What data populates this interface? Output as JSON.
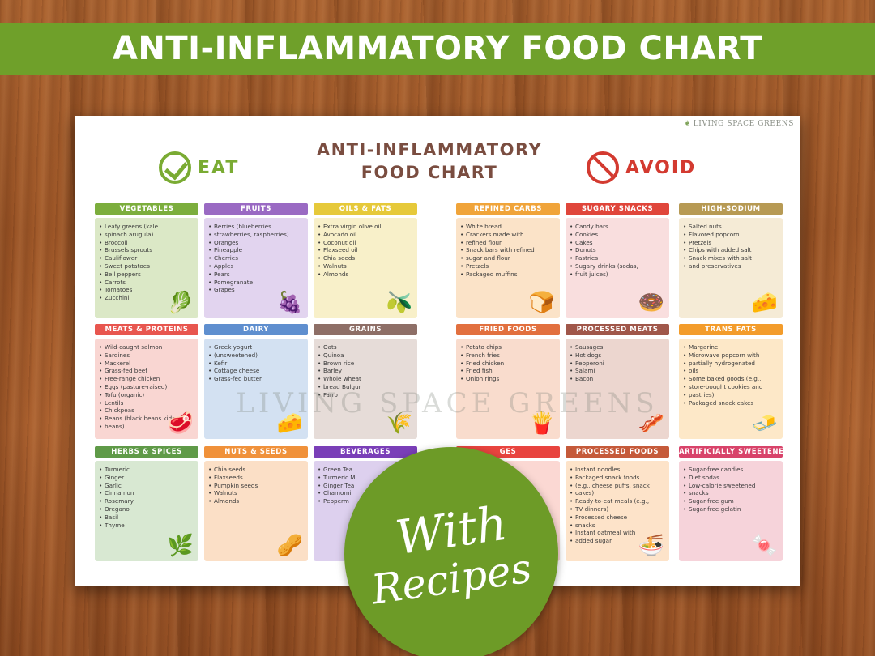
{
  "banner": {
    "title": "ANTI-INFLAMMATORY FOOD CHART"
  },
  "sheet": {
    "brand": "LIVING SPACE GREENS",
    "title_line1": "ANTI-INFLAMMATORY",
    "title_line2": "FOOD CHART",
    "eat_label": "EAT",
    "avoid_label": "AVOID",
    "watermark": "LIVING SPACE GREENS"
  },
  "colors": {
    "banner_green": "#6fa02a",
    "eat_green": "#7aab33",
    "avoid_red": "#d33a30",
    "badge_green": "#6d9b27"
  },
  "categories": [
    {
      "id": "vegetables",
      "label": "VEGETABLES",
      "label_color": "#7cae3d",
      "box_color": "#dbe8c6",
      "icon": "vegetable-basket-icon",
      "glyph": "🥬",
      "items": [
        "Leafy greens (kale",
        "spinach arugula)",
        "Broccoli",
        "Brussels sprouts",
        "Cauliflower",
        "Sweet potatoes",
        "Bell peppers",
        "Carrots",
        "Tomatoes",
        "Zucchini"
      ]
    },
    {
      "id": "fruits",
      "label": "FRUITS",
      "label_color": "#9a6ac3",
      "box_color": "#e2d4ef",
      "icon": "berries-icon",
      "glyph": "🍇",
      "items": [
        "Berries (blueberries",
        "strawberries, raspberries)",
        "Oranges",
        "Pineapple",
        "Cherries",
        "Apples",
        "Pears",
        "Pomegranate",
        "Grapes"
      ]
    },
    {
      "id": "oils-fats",
      "label": "OILS & FATS",
      "label_color": "#e6c93a",
      "box_color": "#f8f0c9",
      "icon": "olive-oil-icon",
      "glyph": "🫒",
      "items": [
        "Extra virgin olive oil",
        "Avocado oil",
        "Coconut oil",
        "Flaxseed oil",
        "Chia seeds",
        "Walnuts",
        "Almonds"
      ]
    },
    {
      "id": "refined-carbs",
      "label": "REFINED CARBS",
      "label_color": "#f0a43a",
      "box_color": "#fbe3c8",
      "icon": "bread-icon",
      "glyph": "🍞",
      "items": [
        "White bread",
        "Crackers made with",
        "refined flour",
        "Snack bars with refined",
        "sugar and flour",
        "Pretzels",
        "Packaged muffins"
      ]
    },
    {
      "id": "sugary-snacks",
      "label": "SUGARY SNACKS",
      "label_color": "#e0463b",
      "box_color": "#f9dede",
      "icon": "donut-icon",
      "glyph": "🍩",
      "items": [
        "Candy bars",
        "Cookies",
        "Cakes",
        "Donuts",
        "Pastries",
        "Sugary drinks (sodas,",
        "fruit juices)"
      ]
    },
    {
      "id": "high-sodium",
      "label": "HIGH-SODIUM",
      "label_color": "#b79a54",
      "box_color": "#f5ebd6",
      "icon": "chips-icon",
      "glyph": "🧀",
      "items": [
        "Salted nuts",
        "Flavored popcorn",
        "Pretzels",
        "Chips with added salt",
        "Snack mixes with salt",
        "and preservatives"
      ]
    },
    {
      "id": "meats-proteins",
      "label": "MEATS & PROTEINS",
      "label_color": "#e8564f",
      "box_color": "#f9d6d2",
      "icon": "meat-icon",
      "glyph": "🥩",
      "items": [
        "Wild-caught salmon",
        "Sardines",
        "Mackerel",
        "Grass-fed beef",
        "Free-range chicken",
        "Eggs (pasture-raised)",
        "Tofu (organic)",
        "Lentils",
        "Chickpeas",
        "Beans (black beans kidney",
        "beans)"
      ]
    },
    {
      "id": "dairy",
      "label": "DAIRY",
      "label_color": "#5f8fcf",
      "box_color": "#d3e1f2",
      "icon": "milk-cheese-icon",
      "glyph": "🧀",
      "items": [
        "Greek yogurt",
        "(unsweetened)",
        "Kefir",
        "Cottage cheese",
        "Grass-fed butter"
      ]
    },
    {
      "id": "grains",
      "label": "GRAINS",
      "label_color": "#8e6f67",
      "box_color": "#e6dcd8",
      "icon": "grain-sack-icon",
      "glyph": "🌾",
      "items": [
        "Oats",
        "Quinoa",
        "Brown rice",
        "Barley",
        "Whole wheat",
        "bread Bulgur",
        "Farro"
      ]
    },
    {
      "id": "fried-foods",
      "label": "FRIED FOODS",
      "label_color": "#e2703f",
      "box_color": "#f9dccd",
      "icon": "fries-icon",
      "glyph": "🍟",
      "items": [
        "Potato chips",
        "French fries",
        "Fried chicken",
        "Fried fish",
        "Onion rings"
      ]
    },
    {
      "id": "processed-meats",
      "label": "PROCESSED MEATS",
      "label_color": "#a0574a",
      "box_color": "#ecd6cf",
      "icon": "sausage-icon",
      "glyph": "🥓",
      "items": [
        "Sausages",
        "Hot dogs",
        "Pepperoni",
        "Salami",
        "Bacon"
      ]
    },
    {
      "id": "trans-fats",
      "label": "TRANS FATS",
      "label_color": "#f39c2b",
      "box_color": "#fde8c8",
      "icon": "butter-icon",
      "glyph": "🧈",
      "items": [
        "Margarine",
        "Microwave popcorn with",
        "partially hydrogenated",
        "oils",
        "Some baked goods (e.g.,",
        "store-bought cookies and",
        "pastries)",
        "Packaged snack cakes"
      ]
    },
    {
      "id": "herbs-spices",
      "label": "HERBS & SPICES",
      "label_color": "#5f9a48",
      "box_color": "#d8e8d2",
      "icon": "herb-icon",
      "glyph": "🌿",
      "items": [
        "Turmeric",
        "Ginger",
        "Garlic",
        "Cinnamon",
        "Rosemary",
        "Oregano",
        "Basil",
        "Thyme"
      ]
    },
    {
      "id": "nuts-seeds",
      "label": "NUTS & SEEDS",
      "label_color": "#f0913a",
      "box_color": "#fbdfc6",
      "icon": "nuts-icon",
      "glyph": "🥜",
      "items": [
        "Chia seeds",
        "Flaxseeds",
        "Pumpkin seeds",
        "Walnuts",
        "Almonds"
      ]
    },
    {
      "id": "beverages",
      "label": "BEVERAGES",
      "label_color": "#7a3fb8",
      "box_color": "#ddd0ee",
      "icon": "tea-icon",
      "glyph": "🍵",
      "items": [
        "Green Tea",
        "Turmeric Mi",
        "Ginger Tea",
        "Chamomi",
        "Pepperm"
      ]
    },
    {
      "id": "beverages-avoid",
      "label": "GES",
      "label_color": "#e8443f",
      "box_color": "#fbd8d3",
      "icon": "soda-icon",
      "glyph": "🥤",
      "items": []
    },
    {
      "id": "processed-foods",
      "label": "PROCESSED FOODS",
      "label_color": "#c55a3a",
      "box_color": "#fde3c9",
      "icon": "noodles-icon",
      "glyph": "🍜",
      "items": [
        "Instant noodles",
        "Packaged snack foods",
        "(e.g., cheese puffs, snack",
        "cakes)",
        "Ready-to-eat meals (e.g.,",
        "TV dinners)",
        "Processed cheese",
        "snacks",
        "Instant oatmeal with",
        "added sugar"
      ]
    },
    {
      "id": "artificially-sweetened",
      "label": "ARTIFICIALLY SWEETENED",
      "label_color": "#d8436a",
      "box_color": "#f6d3da",
      "icon": "candy-icon",
      "glyph": "🍬",
      "items": [
        "Sugar-free candies",
        "Diet sodas",
        "Low-calorie sweetened",
        "snacks",
        "Sugar-free gum",
        "Sugar-free gelatin"
      ]
    }
  ],
  "badge": {
    "line1": "With",
    "line2": "Recipes"
  }
}
